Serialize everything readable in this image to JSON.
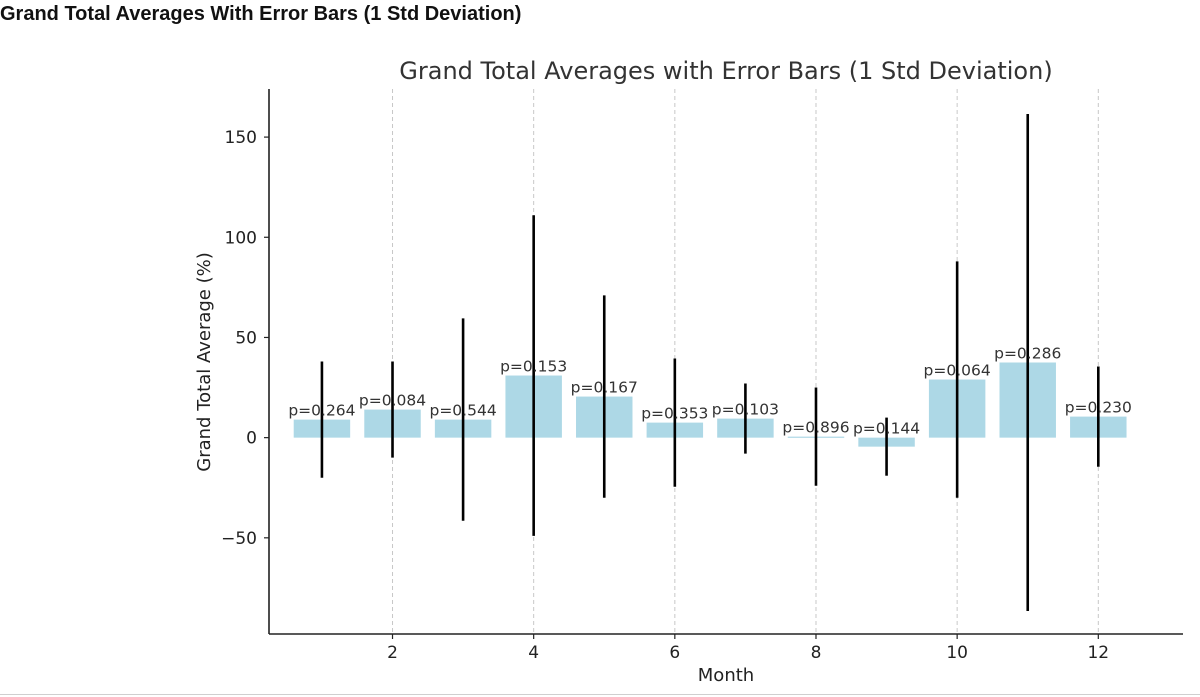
{
  "page": {
    "heading": "Grand Total Averages With Error Bars (1 Std Deviation)"
  },
  "chart_data": {
    "type": "bar",
    "title": "Grand Total Averages with Error Bars (1 Std Deviation)",
    "xlabel": "Month",
    "ylabel": "Grand Total Average (%)",
    "x": [
      1,
      2,
      3,
      4,
      5,
      6,
      7,
      8,
      9,
      10,
      11,
      12
    ],
    "values": [
      9,
      14,
      9,
      31,
      20.5,
      7.5,
      9.5,
      0.5,
      -4.5,
      29,
      37.5,
      10.5
    ],
    "error": [
      29,
      24,
      50.5,
      80,
      50.5,
      32,
      17.5,
      24.5,
      14.5,
      59,
      124,
      25
    ],
    "data_labels": [
      "p=0.264",
      "p=0.084",
      "p=0.544",
      "p=0.153",
      "p=0.167",
      "p=0.353",
      "p=0.103",
      "p=0.896",
      "p=0.144",
      "p=0.064",
      "p=0.286",
      "p=0.230"
    ],
    "xticks": [
      2,
      4,
      6,
      8,
      10,
      12
    ],
    "xtick_labels": [
      "2",
      "4",
      "6",
      "8",
      "10",
      "12"
    ],
    "yticks": [
      -50,
      0,
      50,
      100,
      150
    ],
    "ytick_labels": [
      "−50",
      "0",
      "50",
      "100",
      "150"
    ],
    "xlim": [
      0.25,
      13.2
    ],
    "ylim": [
      -98,
      174
    ],
    "grid": "vertical dashed at x ticks",
    "colors": {
      "bar": "#ADD8E6",
      "error_bar": "#000000",
      "grid": "#c8c8c8",
      "text": "#333333"
    }
  }
}
